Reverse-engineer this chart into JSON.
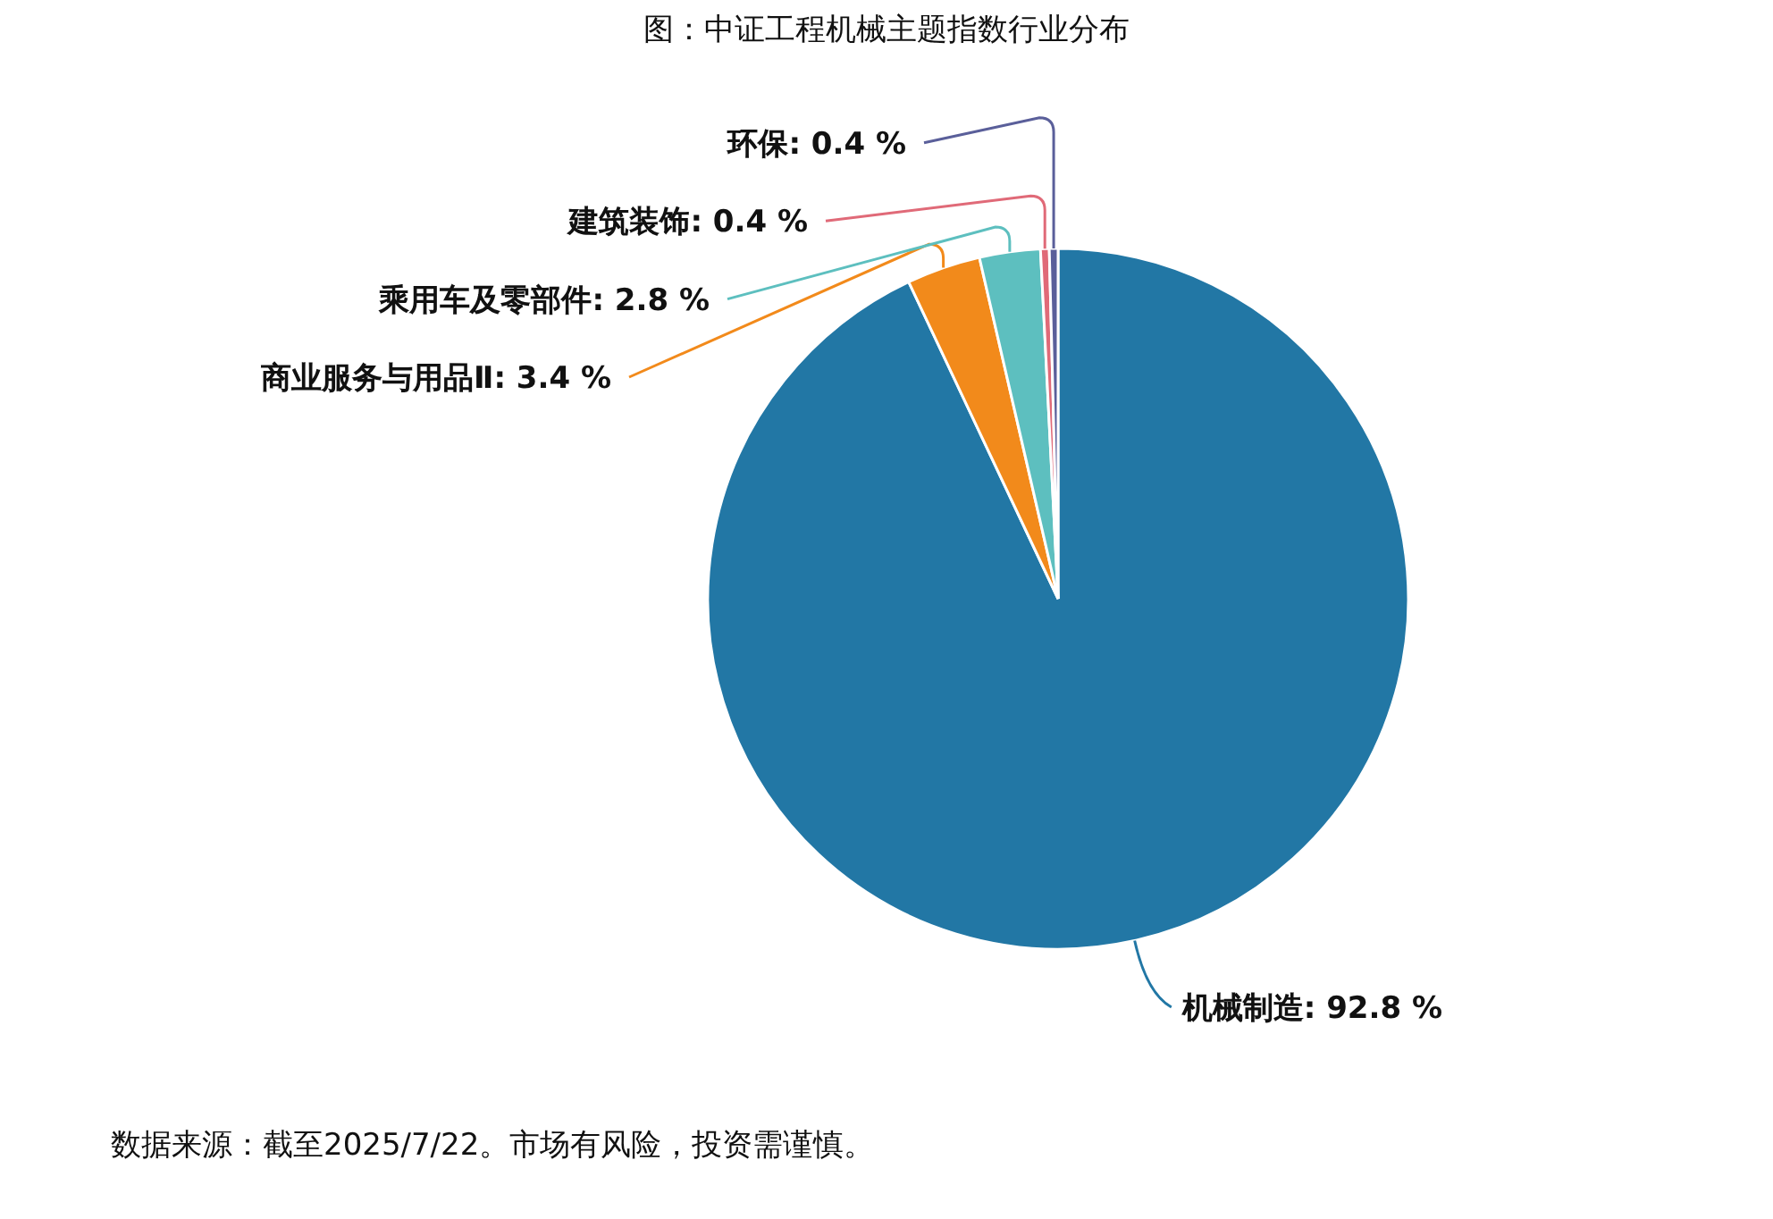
{
  "chart_data": {
    "type": "pie",
    "title": "图：中证工程机械主题指数行业分布",
    "categories": [
      "机械制造",
      "商业服务与用品Ⅱ",
      "乘用车及零部件",
      "建筑装饰",
      "环保"
    ],
    "values": [
      92.8,
      3.4,
      2.8,
      0.4,
      0.4
    ],
    "value_labels": [
      "92.8 %",
      "3.4 %",
      "2.8 %",
      "0.4 %",
      "0.4 %"
    ],
    "colors": [
      "#2277a5",
      "#f28a1b",
      "#5dbfbf",
      "#e06a78",
      "#5a5f9a"
    ],
    "annotations": [
      "数据来源：截至2025/7/22。市场有风险，投资需谨慎。"
    ]
  }
}
